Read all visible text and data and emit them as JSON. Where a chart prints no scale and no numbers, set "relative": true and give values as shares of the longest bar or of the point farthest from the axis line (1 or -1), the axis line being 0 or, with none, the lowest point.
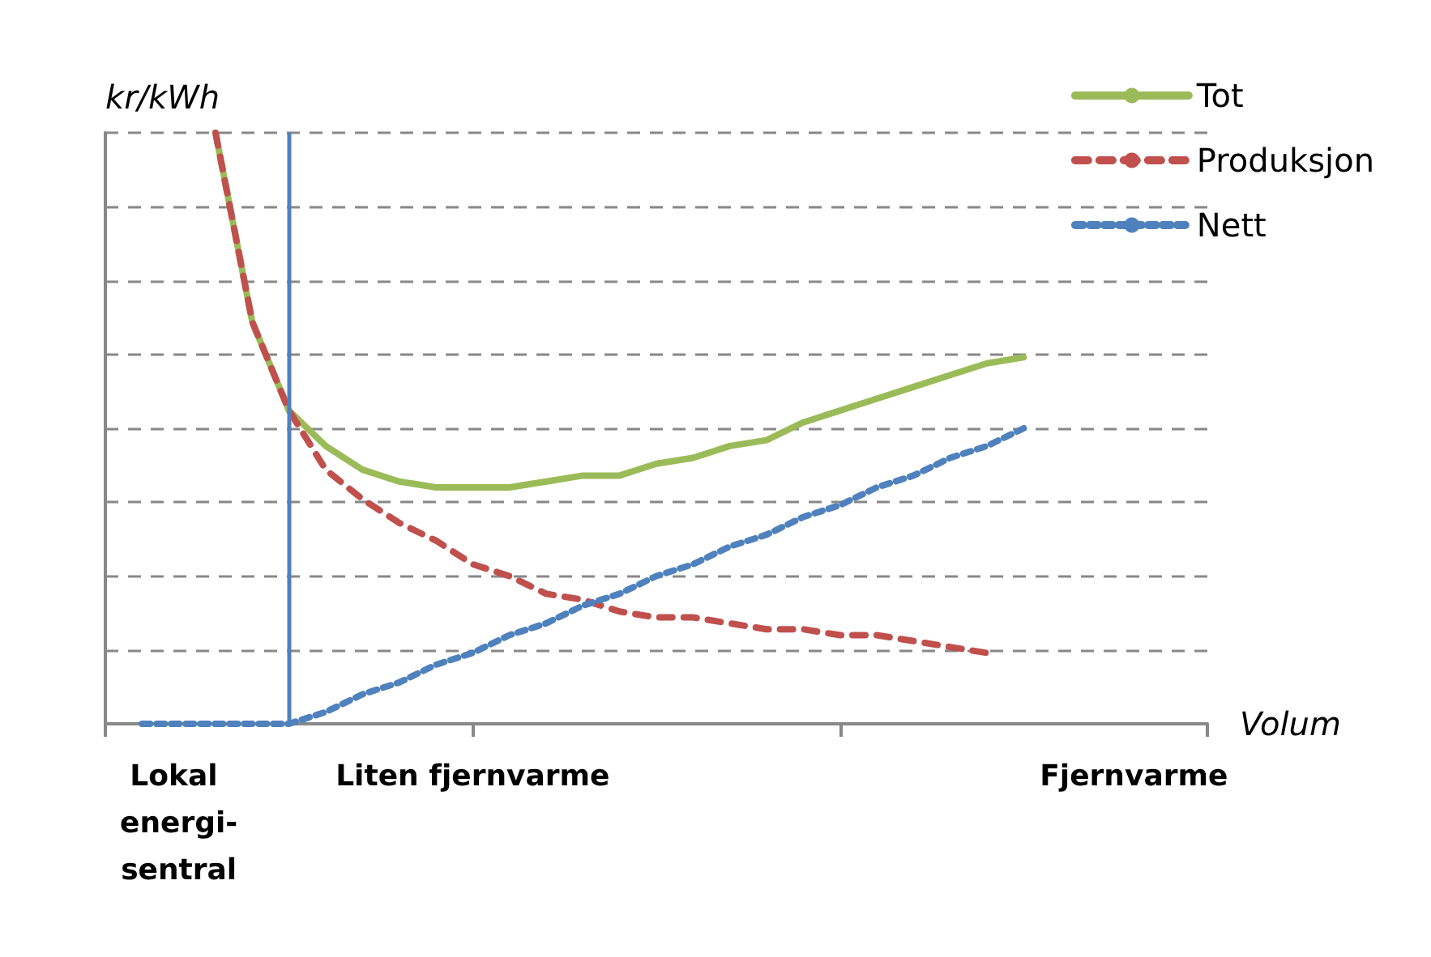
{
  "chart_data": {
    "type": "line",
    "relative": true,
    "ylabel": "kr/kWh",
    "xlabel": "Volum",
    "categories": [
      null,
      null,
      "Lokal energi-sentral",
      null,
      null,
      null,
      null,
      null,
      null,
      null,
      "Liten fjernvarme",
      null,
      null,
      null,
      null,
      null,
      null,
      null,
      null,
      null,
      null,
      null,
      null,
      null,
      null,
      null,
      null,
      null,
      "Fjernvarme",
      null,
      null
    ],
    "series": [
      {
        "name": "Tot",
        "color": "#9bbb59",
        "line_style": "solid",
        "values": [
          null,
          null,
          null,
          1.0,
          0.68,
          0.53,
          0.47,
          0.43,
          0.41,
          0.4,
          0.4,
          0.4,
          0.41,
          0.42,
          0.42,
          0.44,
          0.45,
          0.47,
          0.48,
          0.51,
          0.53,
          0.55,
          0.57,
          0.59,
          0.61,
          0.62,
          null,
          null,
          null,
          null,
          null
        ]
      },
      {
        "name": "Produksjon",
        "color": "#c0504d",
        "line_style": "dashed",
        "values": [
          null,
          null,
          null,
          1.0,
          0.68,
          0.53,
          0.43,
          0.38,
          0.34,
          0.31,
          0.27,
          0.25,
          0.22,
          0.21,
          0.19,
          0.18,
          0.18,
          0.17,
          0.16,
          0.16,
          0.15,
          0.15,
          0.14,
          0.13,
          0.12,
          null,
          null,
          null,
          null,
          null,
          null
        ]
      },
      {
        "name": "Nett",
        "color": "#4f81bd",
        "line_style": "dotted",
        "values": [
          null,
          0,
          0,
          0,
          0,
          0,
          0.02,
          0.05,
          0.07,
          0.1,
          0.12,
          0.15,
          0.17,
          0.2,
          0.22,
          0.25,
          0.27,
          0.3,
          0.32,
          0.35,
          0.37,
          0.4,
          0.42,
          0.45,
          0.47,
          0.5,
          null,
          null,
          null,
          null,
          null
        ]
      }
    ],
    "grid": "y",
    "legend": "top right",
    "marker": "none"
  }
}
